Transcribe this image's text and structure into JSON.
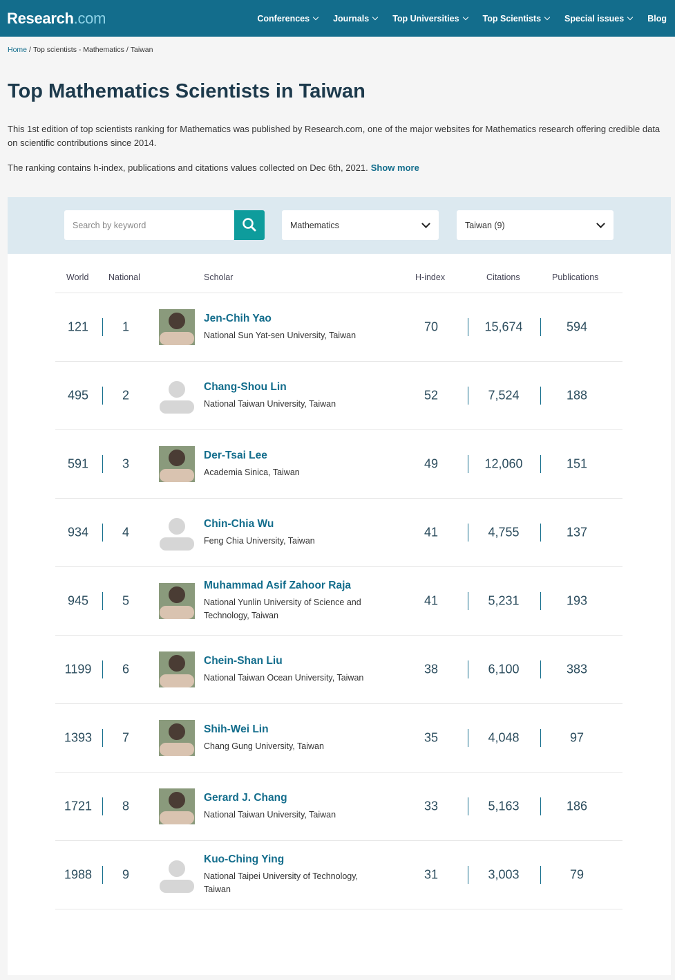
{
  "header": {
    "logo_main": "Research",
    "logo_suffix": ".com",
    "nav": [
      "Conferences",
      "Journals",
      "Top Universities",
      "Top Scientists",
      "Special issues",
      "Blog"
    ]
  },
  "breadcrumb": {
    "items": [
      "Home",
      "Top scientists - Mathematics",
      "Taiwan"
    ],
    "separator": "/"
  },
  "title": "Top Mathematics Scientists in Taiwan",
  "intro": {
    "paragraph_1": "This 1st edition of top scientists ranking for Mathematics was published by Research.com, one of the major websites for Mathematics research offering credible data on scientific contributions since 2014.",
    "paragraph_2": "The ranking contains h-index, publications and citations values collected on Dec 6th, 2021.",
    "show_more": "Show more"
  },
  "filters": {
    "search_placeholder": "Search by keyword",
    "discipline": "Mathematics",
    "country": "Taiwan (9)"
  },
  "table": {
    "columns": [
      "World",
      "National",
      "Scholar",
      "H-index",
      "Citations",
      "Publications"
    ],
    "rows": [
      {
        "world": "121",
        "national": "1",
        "name": "Jen-Chih Yao",
        "affiliation": "National Sun Yat-sen University, Taiwan",
        "h_index": "70",
        "citations": "15,674",
        "publications": "594"
      },
      {
        "world": "495",
        "national": "2",
        "name": "Chang-Shou Lin",
        "affiliation": "National Taiwan University, Taiwan",
        "h_index": "52",
        "citations": "7,524",
        "publications": "188"
      },
      {
        "world": "591",
        "national": "3",
        "name": "Der-Tsai Lee",
        "affiliation": "Academia Sinica, Taiwan",
        "h_index": "49",
        "citations": "12,060",
        "publications": "151"
      },
      {
        "world": "934",
        "national": "4",
        "name": "Chin-Chia Wu",
        "affiliation": "Feng Chia University, Taiwan",
        "h_index": "41",
        "citations": "4,755",
        "publications": "137"
      },
      {
        "world": "945",
        "national": "5",
        "name": "Muhammad Asif Zahoor Raja",
        "affiliation": "National Yunlin University of Science and Technology, Taiwan",
        "h_index": "41",
        "citations": "5,231",
        "publications": "193"
      },
      {
        "world": "1199",
        "national": "6",
        "name": "Chein-Shan Liu",
        "affiliation": "National Taiwan Ocean University, Taiwan",
        "h_index": "38",
        "citations": "6,100",
        "publications": "383"
      },
      {
        "world": "1393",
        "national": "7",
        "name": "Shih-Wei Lin",
        "affiliation": "Chang Gung University, Taiwan",
        "h_index": "35",
        "citations": "4,048",
        "publications": "97"
      },
      {
        "world": "1721",
        "national": "8",
        "name": "Gerard J. Chang",
        "affiliation": "National Taiwan University, Taiwan",
        "h_index": "33",
        "citations": "5,163",
        "publications": "186"
      },
      {
        "world": "1988",
        "national": "9",
        "name": "Kuo-Ching Ying",
        "affiliation": "National Taipei University of Technology, Taiwan",
        "h_index": "31",
        "citations": "3,003",
        "publications": "79"
      }
    ]
  }
}
